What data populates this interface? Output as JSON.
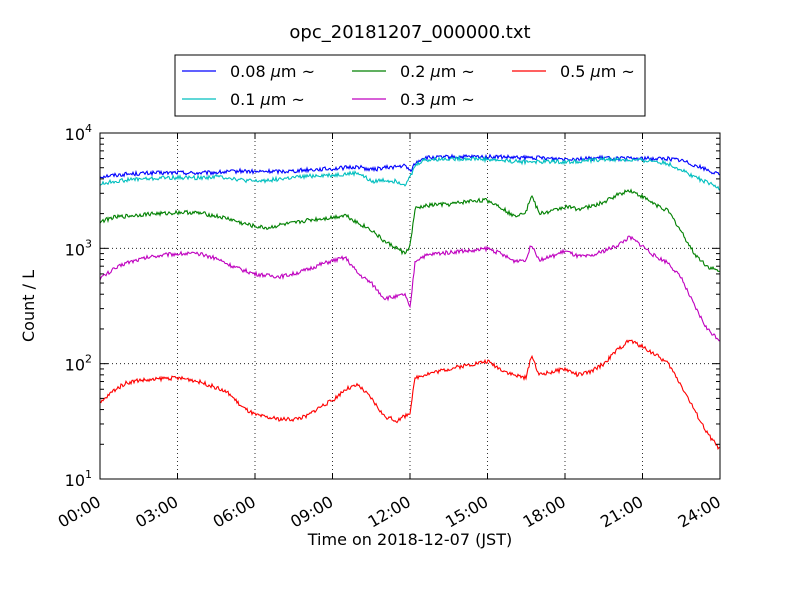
{
  "chart_data": {
    "type": "line",
    "title": "opc_20181207_000000.txt",
    "xlabel": "Time on 2018-12-07 (JST)",
    "ylabel": "Count / L",
    "yscale": "log",
    "xlim": [
      0,
      24
    ],
    "ylim": [
      10,
      10000
    ],
    "grid": true,
    "legend_position": "top-center",
    "x_ticks": [
      {
        "value": 0,
        "label": "00:00"
      },
      {
        "value": 3,
        "label": "03:00"
      },
      {
        "value": 6,
        "label": "06:00"
      },
      {
        "value": 9,
        "label": "09:00"
      },
      {
        "value": 12,
        "label": "12:00"
      },
      {
        "value": 15,
        "label": "15:00"
      },
      {
        "value": 18,
        "label": "18:00"
      },
      {
        "value": 21,
        "label": "21:00"
      },
      {
        "value": 24,
        "label": "24:00"
      }
    ],
    "y_ticks": [
      {
        "value": 10,
        "base": "10",
        "exp": "1"
      },
      {
        "value": 100,
        "base": "10",
        "exp": "2"
      },
      {
        "value": 1000,
        "base": "10",
        "exp": "3"
      },
      {
        "value": 10000,
        "base": "10",
        "exp": "4"
      }
    ],
    "x": [
      0,
      0.5,
      1,
      1.5,
      2,
      2.5,
      3,
      3.5,
      4,
      4.5,
      5,
      5.5,
      6,
      6.5,
      7,
      7.5,
      8,
      8.5,
      9,
      9.5,
      10,
      10.5,
      11,
      11.5,
      11.8,
      12,
      12.2,
      12.5,
      13,
      13.5,
      14,
      14.5,
      15,
      15.5,
      16,
      16.5,
      16.7,
      17,
      17.5,
      18,
      18.5,
      19,
      19.5,
      20,
      20.5,
      21,
      21.5,
      22,
      22.5,
      23,
      23.5,
      24
    ],
    "series": [
      {
        "name": "0.08 μm ~",
        "legend_prefix": "0.08 ",
        "legend_mu": "μ",
        "legend_unit": "m ~",
        "color": "#0000ff",
        "values": [
          4200,
          4300,
          4400,
          4450,
          4500,
          4500,
          4550,
          4500,
          4500,
          4550,
          4600,
          4700,
          4600,
          4650,
          4650,
          4700,
          4800,
          4850,
          4900,
          5000,
          5100,
          4800,
          5000,
          5100,
          5200,
          4700,
          5400,
          6100,
          6100,
          6200,
          6200,
          6200,
          6200,
          6200,
          6100,
          6100,
          6100,
          6100,
          6000,
          6000,
          6000,
          6000,
          6100,
          6000,
          6000,
          6000,
          6000,
          6000,
          5800,
          5300,
          4800,
          4300
        ]
      },
      {
        "name": "0.1 μm ~",
        "legend_prefix": "0.1 ",
        "legend_mu": "μ",
        "legend_unit": "m ~",
        "color": "#00bfbf",
        "values": [
          3600,
          3800,
          3900,
          4000,
          4000,
          4100,
          4100,
          4100,
          4100,
          4200,
          4100,
          3900,
          3800,
          3900,
          4000,
          4100,
          4200,
          4300,
          4300,
          4400,
          4500,
          3800,
          3900,
          3800,
          3600,
          4100,
          5200,
          5800,
          5900,
          6000,
          6000,
          6000,
          5900,
          5800,
          5700,
          5600,
          5700,
          5600,
          5700,
          5600,
          5700,
          5800,
          5900,
          5900,
          5800,
          5800,
          5700,
          5400,
          4800,
          4200,
          3700,
          3300
        ]
      },
      {
        "name": "0.2 μm ~",
        "legend_prefix": "0.2 ",
        "legend_mu": "μ",
        "legend_unit": "m ~",
        "color": "#008000",
        "values": [
          1700,
          1850,
          1900,
          1950,
          2000,
          2000,
          2050,
          2050,
          2000,
          1900,
          1800,
          1650,
          1550,
          1500,
          1600,
          1650,
          1750,
          1800,
          1850,
          1950,
          1650,
          1450,
          1150,
          1000,
          900,
          1050,
          2200,
          2300,
          2400,
          2400,
          2500,
          2600,
          2600,
          2300,
          1900,
          2100,
          2900,
          2000,
          2100,
          2300,
          2200,
          2300,
          2500,
          2900,
          3200,
          2800,
          2400,
          2100,
          1400,
          900,
          700,
          620
        ]
      },
      {
        "name": "0.3 μm ~",
        "legend_prefix": "0.3 ",
        "legend_mu": "μ",
        "legend_unit": "m ~",
        "color": "#bf00bf",
        "values": [
          550,
          650,
          750,
          800,
          850,
          880,
          900,
          900,
          880,
          820,
          720,
          650,
          600,
          580,
          570,
          600,
          650,
          720,
          780,
          830,
          600,
          500,
          370,
          380,
          400,
          300,
          780,
          850,
          900,
          920,
          950,
          950,
          1000,
          900,
          780,
          800,
          1100,
          800,
          850,
          950,
          850,
          850,
          950,
          1050,
          1250,
          1050,
          850,
          750,
          550,
          320,
          200,
          160
        ]
      },
      {
        "name": "0.5 μm ~",
        "legend_prefix": "0.5 ",
        "legend_mu": "μ",
        "legend_unit": "m ~",
        "color": "#ff0000",
        "values": [
          45,
          58,
          68,
          72,
          72,
          75,
          75,
          73,
          68,
          62,
          55,
          42,
          36,
          34,
          33,
          33,
          35,
          42,
          48,
          60,
          65,
          50,
          35,
          32,
          35,
          38,
          75,
          80,
          85,
          90,
          95,
          100,
          105,
          90,
          80,
          75,
          120,
          80,
          85,
          90,
          80,
          85,
          100,
          130,
          160,
          140,
          120,
          100,
          65,
          40,
          25,
          18
        ]
      }
    ]
  }
}
